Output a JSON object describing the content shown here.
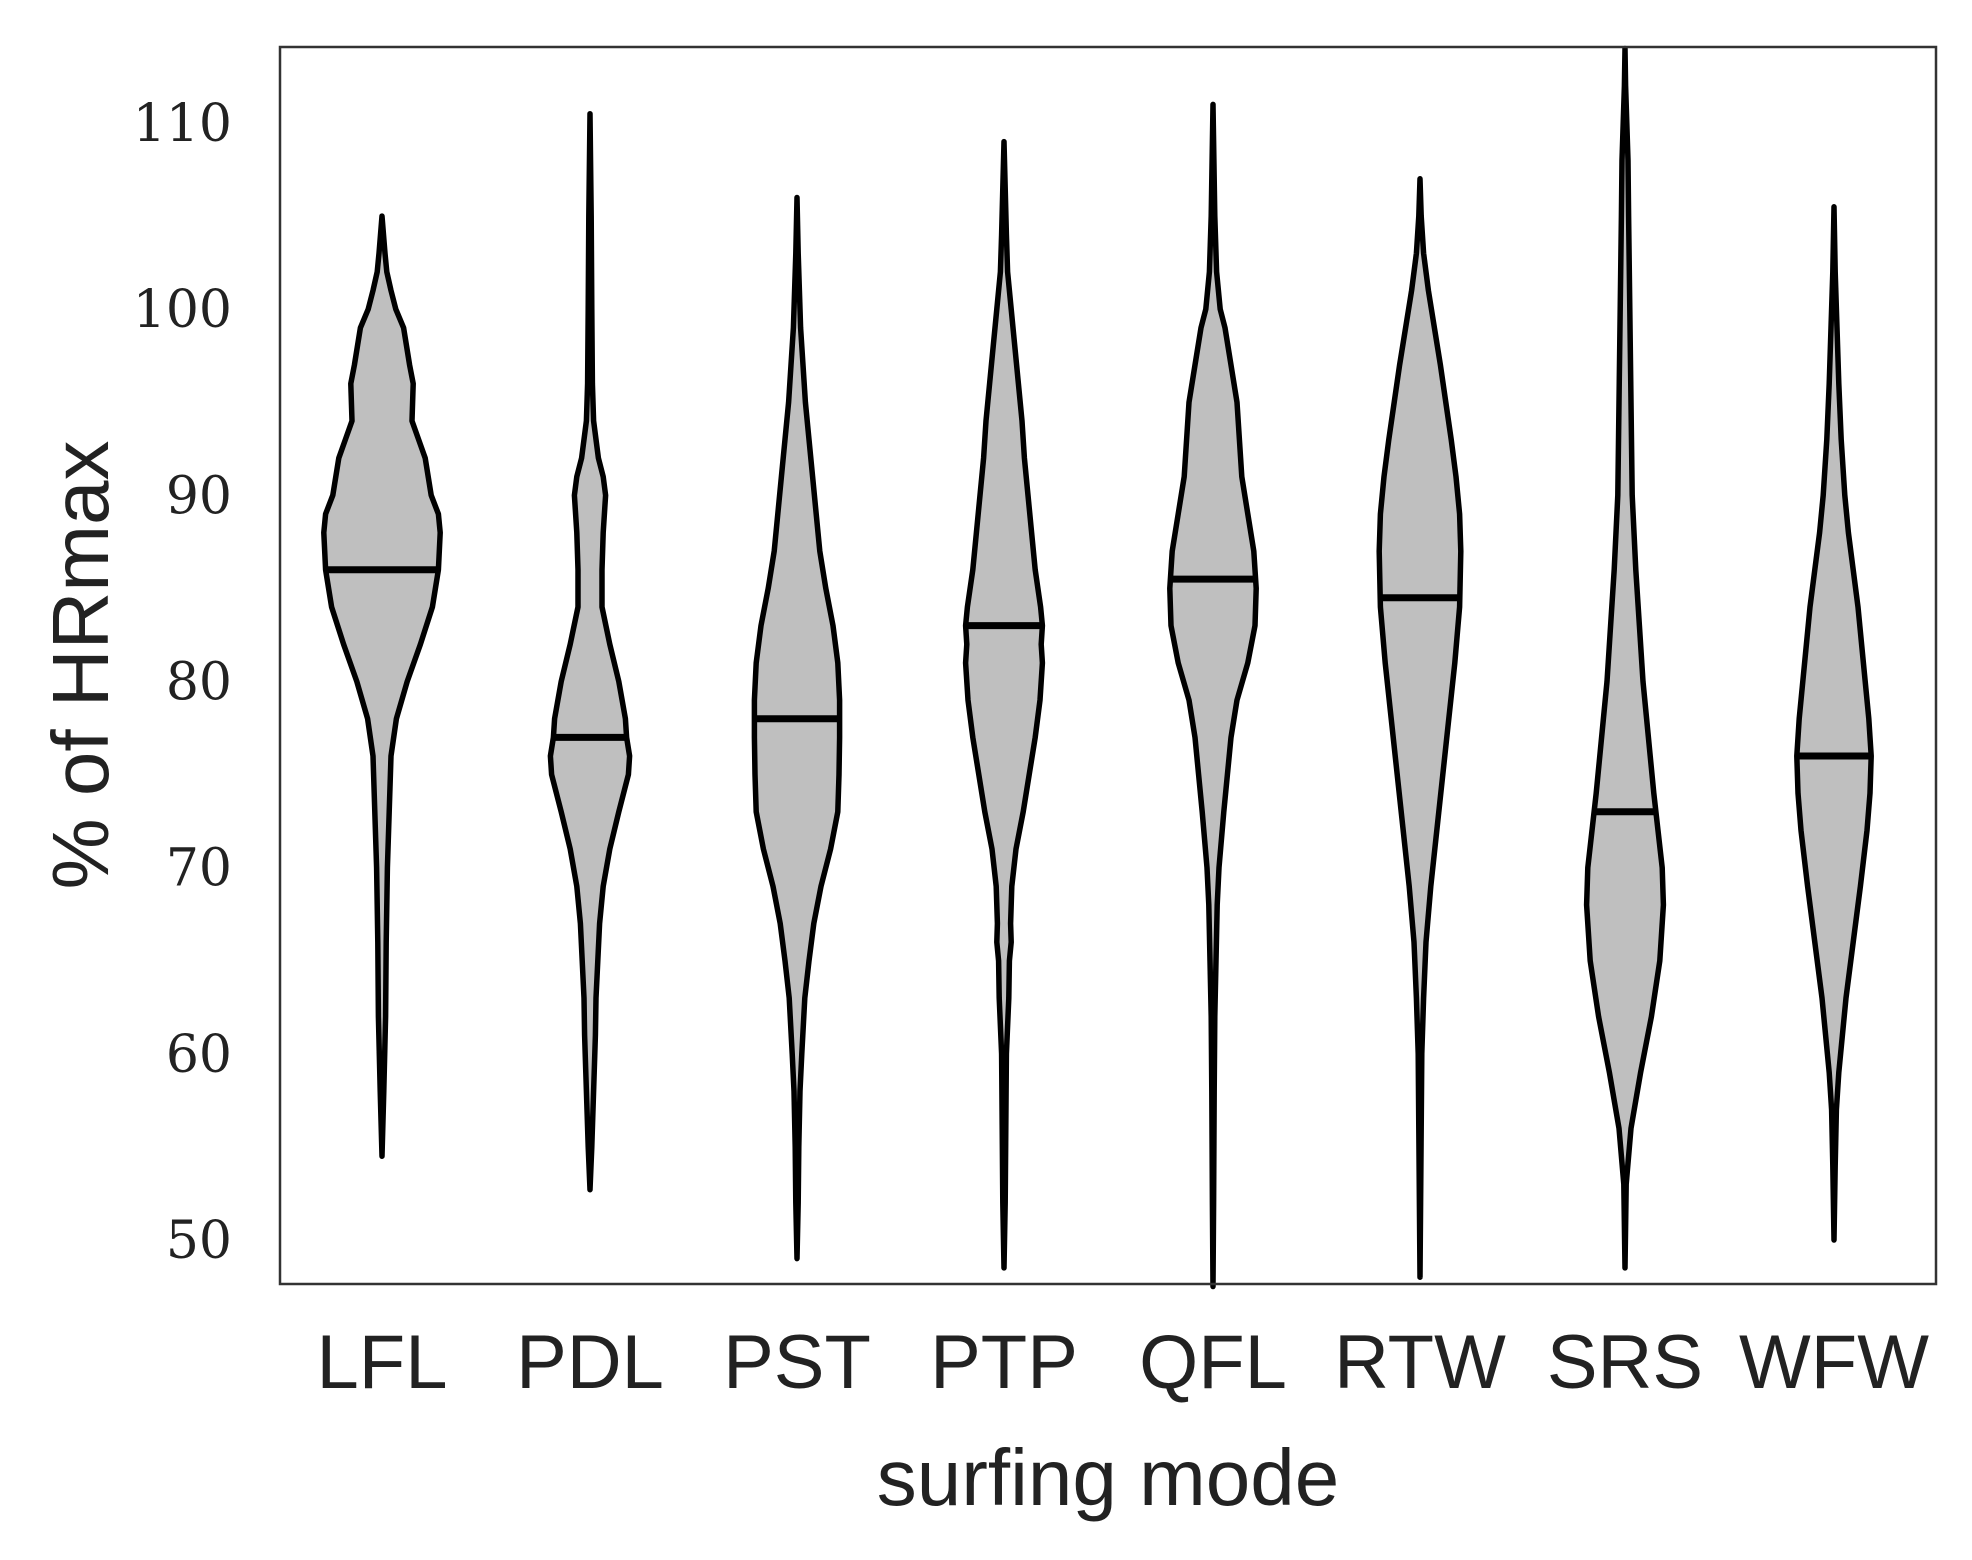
{
  "chart_data": {
    "type": "violin",
    "xlabel": "surfing mode",
    "ylabel": "% of HRmax",
    "ylim": [
      48.5,
      114
    ],
    "yticks": [
      50,
      60,
      70,
      80,
      90,
      100,
      110
    ],
    "colors": {
      "fill": "#bfbfbf",
      "stroke": "#000000"
    },
    "series": [
      {
        "name": "LFL",
        "median": 86,
        "min": 54.5,
        "max": 105,
        "profile": [
          [
            54.5,
            0
          ],
          [
            58,
            0.03
          ],
          [
            62,
            0.06
          ],
          [
            66,
            0.07
          ],
          [
            70,
            0.09
          ],
          [
            73,
            0.12
          ],
          [
            76,
            0.15
          ],
          [
            78,
            0.24
          ],
          [
            80,
            0.42
          ],
          [
            82,
            0.64
          ],
          [
            84,
            0.84
          ],
          [
            86,
            0.94
          ],
          [
            88,
            0.97
          ],
          [
            89,
            0.94
          ],
          [
            90,
            0.82
          ],
          [
            92,
            0.72
          ],
          [
            93,
            0.61
          ],
          [
            94,
            0.5
          ],
          [
            96,
            0.52
          ],
          [
            97,
            0.46
          ],
          [
            99,
            0.36
          ],
          [
            100,
            0.23
          ],
          [
            101,
            0.15
          ],
          [
            102,
            0.08
          ],
          [
            103,
            0.05
          ],
          [
            105,
            0
          ]
        ]
      },
      {
        "name": "PDL",
        "median": 77,
        "min": 52.7,
        "max": 110.5,
        "profile": [
          [
            52.7,
            0
          ],
          [
            55,
            0.03
          ],
          [
            57,
            0.05
          ],
          [
            59,
            0.07
          ],
          [
            61,
            0.09
          ],
          [
            63,
            0.1
          ],
          [
            65,
            0.13
          ],
          [
            67,
            0.16
          ],
          [
            69,
            0.22
          ],
          [
            71,
            0.33
          ],
          [
            73,
            0.48
          ],
          [
            75,
            0.64
          ],
          [
            76,
            0.66
          ],
          [
            77,
            0.61
          ],
          [
            78,
            0.59
          ],
          [
            80,
            0.48
          ],
          [
            82,
            0.33
          ],
          [
            84,
            0.2
          ],
          [
            86,
            0.2
          ],
          [
            88,
            0.22
          ],
          [
            90,
            0.26
          ],
          [
            91,
            0.22
          ],
          [
            92,
            0.14
          ],
          [
            94,
            0.06
          ],
          [
            96,
            0.04
          ],
          [
            100,
            0.03
          ],
          [
            105,
            0.02
          ],
          [
            110.5,
            0
          ]
        ]
      },
      {
        "name": "PST",
        "median": 78,
        "min": 49,
        "max": 106,
        "profile": [
          [
            49,
            0
          ],
          [
            52,
            0.02
          ],
          [
            55,
            0.03
          ],
          [
            58,
            0.05
          ],
          [
            60,
            0.08
          ],
          [
            63,
            0.13
          ],
          [
            65,
            0.2
          ],
          [
            67,
            0.28
          ],
          [
            69,
            0.4
          ],
          [
            71,
            0.56
          ],
          [
            73,
            0.68
          ],
          [
            75,
            0.7
          ],
          [
            77,
            0.71
          ],
          [
            79,
            0.71
          ],
          [
            81,
            0.68
          ],
          [
            83,
            0.6
          ],
          [
            85,
            0.48
          ],
          [
            87,
            0.38
          ],
          [
            89,
            0.32
          ],
          [
            91,
            0.26
          ],
          [
            93,
            0.2
          ],
          [
            95,
            0.14
          ],
          [
            97,
            0.1
          ],
          [
            99,
            0.06
          ],
          [
            101,
            0.04
          ],
          [
            103,
            0.02
          ],
          [
            106,
            0
          ]
        ]
      },
      {
        "name": "PTP",
        "median": 83,
        "min": 48.5,
        "max": 109,
        "profile": [
          [
            48.5,
            0
          ],
          [
            52,
            0.02
          ],
          [
            56,
            0.03
          ],
          [
            60,
            0.04
          ],
          [
            63,
            0.08
          ],
          [
            65,
            0.09
          ],
          [
            66,
            0.12
          ],
          [
            67,
            0.11
          ],
          [
            69,
            0.13
          ],
          [
            71,
            0.2
          ],
          [
            73,
            0.32
          ],
          [
            75,
            0.42
          ],
          [
            77,
            0.52
          ],
          [
            79,
            0.6
          ],
          [
            81,
            0.64
          ],
          [
            82,
            0.62
          ],
          [
            83,
            0.64
          ],
          [
            84,
            0.61
          ],
          [
            86,
            0.52
          ],
          [
            88,
            0.46
          ],
          [
            90,
            0.4
          ],
          [
            92,
            0.34
          ],
          [
            94,
            0.3
          ],
          [
            96,
            0.24
          ],
          [
            98,
            0.18
          ],
          [
            100,
            0.12
          ],
          [
            102,
            0.06
          ],
          [
            104,
            0.04
          ],
          [
            109,
            0
          ]
        ]
      },
      {
        "name": "QFL",
        "median": 85.5,
        "min": 47.5,
        "max": 111,
        "profile": [
          [
            47.5,
            0
          ],
          [
            52,
            0.01
          ],
          [
            58,
            0.02
          ],
          [
            62,
            0.03
          ],
          [
            65,
            0.05
          ],
          [
            68,
            0.07
          ],
          [
            70,
            0.1
          ],
          [
            73,
            0.18
          ],
          [
            75,
            0.24
          ],
          [
            77,
            0.3
          ],
          [
            79,
            0.4
          ],
          [
            81,
            0.58
          ],
          [
            83,
            0.7
          ],
          [
            85,
            0.72
          ],
          [
            87,
            0.68
          ],
          [
            89,
            0.58
          ],
          [
            91,
            0.48
          ],
          [
            92,
            0.46
          ],
          [
            93,
            0.44
          ],
          [
            95,
            0.4
          ],
          [
            97,
            0.3
          ],
          [
            99,
            0.2
          ],
          [
            100,
            0.12
          ],
          [
            102,
            0.06
          ],
          [
            105,
            0.03
          ],
          [
            111,
            0
          ]
        ]
      },
      {
        "name": "RTW",
        "median": 84.5,
        "min": 48,
        "max": 107,
        "profile": [
          [
            48,
            0
          ],
          [
            52,
            0.01
          ],
          [
            56,
            0.02
          ],
          [
            60,
            0.03
          ],
          [
            63,
            0.06
          ],
          [
            66,
            0.1
          ],
          [
            69,
            0.18
          ],
          [
            72,
            0.28
          ],
          [
            75,
            0.38
          ],
          [
            78,
            0.48
          ],
          [
            81,
            0.58
          ],
          [
            84,
            0.66
          ],
          [
            87,
            0.68
          ],
          [
            89,
            0.66
          ],
          [
            91,
            0.6
          ],
          [
            93,
            0.52
          ],
          [
            95,
            0.43
          ],
          [
            97,
            0.34
          ],
          [
            99,
            0.24
          ],
          [
            101,
            0.14
          ],
          [
            103,
            0.06
          ],
          [
            105,
            0.02
          ],
          [
            107,
            0
          ]
        ]
      },
      {
        "name": "SRS",
        "median": 73,
        "min": 48.5,
        "max": 114,
        "profile": [
          [
            48.5,
            0
          ],
          [
            53,
            0.02
          ],
          [
            56,
            0.1
          ],
          [
            59,
            0.26
          ],
          [
            62,
            0.44
          ],
          [
            65,
            0.58
          ],
          [
            68,
            0.64
          ],
          [
            70,
            0.62
          ],
          [
            72,
            0.55
          ],
          [
            74,
            0.48
          ],
          [
            76,
            0.42
          ],
          [
            78,
            0.36
          ],
          [
            80,
            0.3
          ],
          [
            83,
            0.24
          ],
          [
            86,
            0.18
          ],
          [
            90,
            0.12
          ],
          [
            95,
            0.1
          ],
          [
            100,
            0.08
          ],
          [
            105,
            0.06
          ],
          [
            108,
            0.05
          ],
          [
            110,
            0.03
          ],
          [
            112,
            0.01
          ],
          [
            114,
            0
          ]
        ]
      },
      {
        "name": "WFW",
        "median": 76,
        "min": 50,
        "max": 105.5,
        "profile": [
          [
            50,
            0
          ],
          [
            54,
            0.02
          ],
          [
            57,
            0.04
          ],
          [
            59,
            0.08
          ],
          [
            61,
            0.14
          ],
          [
            63,
            0.2
          ],
          [
            66,
            0.32
          ],
          [
            69,
            0.44
          ],
          [
            72,
            0.55
          ],
          [
            74,
            0.6
          ],
          [
            76,
            0.62
          ],
          [
            78,
            0.58
          ],
          [
            80,
            0.52
          ],
          [
            82,
            0.46
          ],
          [
            84,
            0.4
          ],
          [
            86,
            0.32
          ],
          [
            88,
            0.24
          ],
          [
            90,
            0.18
          ],
          [
            93,
            0.12
          ],
          [
            96,
            0.08
          ],
          [
            99,
            0.05
          ],
          [
            102,
            0.02
          ],
          [
            105.5,
            0
          ]
        ]
      }
    ]
  }
}
